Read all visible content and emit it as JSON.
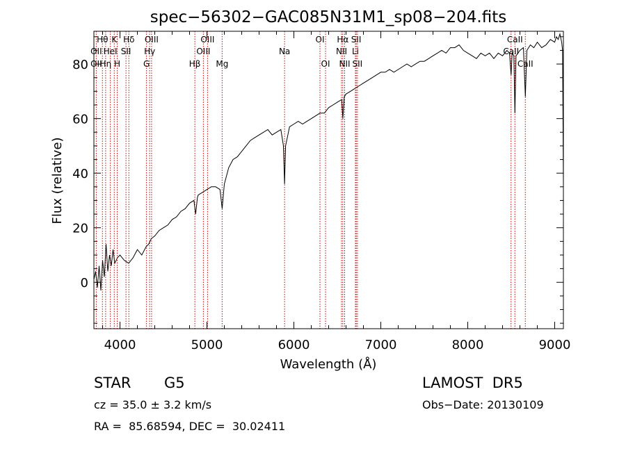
{
  "chart_data": {
    "type": "line",
    "title": "spec−56302−GAC085N31M1_sp08−204.fits",
    "xlabel": "Wavelength (Å)",
    "ylabel": "Flux (relative)",
    "xlim": [
      3700,
      9100
    ],
    "ylim": [
      -17,
      92
    ],
    "xticks": [
      4000,
      5000,
      6000,
      7000,
      8000,
      9000
    ],
    "yticks": [
      0,
      20,
      40,
      60,
      80
    ],
    "grid": false,
    "series": [
      {
        "points": [
          [
            3700,
            1
          ],
          [
            3720,
            4
          ],
          [
            3740,
            -2
          ],
          [
            3760,
            6
          ],
          [
            3780,
            -3
          ],
          [
            3800,
            8
          ],
          [
            3820,
            2
          ],
          [
            3840,
            14
          ],
          [
            3860,
            4
          ],
          [
            3880,
            10
          ],
          [
            3900,
            6
          ],
          [
            3920,
            12
          ],
          [
            3940,
            7
          ],
          [
            3970,
            9
          ],
          [
            4000,
            10
          ],
          [
            4050,
            8
          ],
          [
            4100,
            7
          ],
          [
            4150,
            9
          ],
          [
            4200,
            12
          ],
          [
            4250,
            10
          ],
          [
            4300,
            13
          ],
          [
            4330,
            14
          ],
          [
            4360,
            16
          ],
          [
            4400,
            17
          ],
          [
            4450,
            19
          ],
          [
            4500,
            20
          ],
          [
            4550,
            21
          ],
          [
            4600,
            23
          ],
          [
            4650,
            24
          ],
          [
            4700,
            26
          ],
          [
            4750,
            27
          ],
          [
            4800,
            29
          ],
          [
            4850,
            30
          ],
          [
            4870,
            25
          ],
          [
            4890,
            31
          ],
          [
            4900,
            32
          ],
          [
            4950,
            33
          ],
          [
            5000,
            34
          ],
          [
            5050,
            35
          ],
          [
            5100,
            35
          ],
          [
            5150,
            34
          ],
          [
            5175,
            27
          ],
          [
            5200,
            36
          ],
          [
            5250,
            42
          ],
          [
            5300,
            45
          ],
          [
            5350,
            46
          ],
          [
            5400,
            48
          ],
          [
            5450,
            50
          ],
          [
            5500,
            52
          ],
          [
            5550,
            53
          ],
          [
            5600,
            54
          ],
          [
            5650,
            55
          ],
          [
            5700,
            56
          ],
          [
            5750,
            54
          ],
          [
            5800,
            55
          ],
          [
            5850,
            56
          ],
          [
            5880,
            50
          ],
          [
            5893,
            36
          ],
          [
            5905,
            50
          ],
          [
            5950,
            57
          ],
          [
            6000,
            58
          ],
          [
            6050,
            59
          ],
          [
            6100,
            58
          ],
          [
            6150,
            59
          ],
          [
            6200,
            60
          ],
          [
            6250,
            61
          ],
          [
            6300,
            62
          ],
          [
            6350,
            62
          ],
          [
            6400,
            64
          ],
          [
            6450,
            65
          ],
          [
            6500,
            66
          ],
          [
            6550,
            67
          ],
          [
            6563,
            60
          ],
          [
            6580,
            68
          ],
          [
            6600,
            69
          ],
          [
            6650,
            70
          ],
          [
            6700,
            71
          ],
          [
            6750,
            72
          ],
          [
            6800,
            73
          ],
          [
            6850,
            74
          ],
          [
            6900,
            75
          ],
          [
            6950,
            76
          ],
          [
            7000,
            77
          ],
          [
            7050,
            77
          ],
          [
            7100,
            78
          ],
          [
            7150,
            77
          ],
          [
            7200,
            78
          ],
          [
            7250,
            79
          ],
          [
            7300,
            80
          ],
          [
            7350,
            79
          ],
          [
            7400,
            80
          ],
          [
            7450,
            81
          ],
          [
            7500,
            81
          ],
          [
            7550,
            82
          ],
          [
            7600,
            83
          ],
          [
            7650,
            84
          ],
          [
            7700,
            85
          ],
          [
            7750,
            84
          ],
          [
            7800,
            86
          ],
          [
            7850,
            86
          ],
          [
            7900,
            87
          ],
          [
            7950,
            85
          ],
          [
            8000,
            84
          ],
          [
            8050,
            83
          ],
          [
            8100,
            82
          ],
          [
            8150,
            84
          ],
          [
            8200,
            83
          ],
          [
            8250,
            84
          ],
          [
            8300,
            82
          ],
          [
            8350,
            84
          ],
          [
            8400,
            83
          ],
          [
            8450,
            85
          ],
          [
            8480,
            84
          ],
          [
            8498,
            76
          ],
          [
            8510,
            84
          ],
          [
            8530,
            83
          ],
          [
            8542,
            62
          ],
          [
            8555,
            83
          ],
          [
            8600,
            85
          ],
          [
            8640,
            86
          ],
          [
            8662,
            68
          ],
          [
            8680,
            85
          ],
          [
            8720,
            87
          ],
          [
            8760,
            86
          ],
          [
            8800,
            88
          ],
          [
            8850,
            86
          ],
          [
            8900,
            87
          ],
          [
            8950,
            89
          ],
          [
            9000,
            88
          ],
          [
            9020,
            90
          ],
          [
            9040,
            89
          ],
          [
            9060,
            91
          ],
          [
            9080,
            88
          ],
          [
            9090,
            85
          ],
          [
            9100,
            36
          ]
        ]
      }
    ],
    "line_labels": [
      {
        "text": "Hθ",
        "x": 3798,
        "row": 0
      },
      {
        "text": "K",
        "x": 3934,
        "row": 0
      },
      {
        "text": "Hδ",
        "x": 4102,
        "row": 0
      },
      {
        "text": "OIII",
        "x": 4363,
        "row": 0
      },
      {
        "text": "OIII",
        "x": 5007,
        "row": 0
      },
      {
        "text": "OI",
        "x": 6300,
        "row": 0
      },
      {
        "text": "Hα",
        "x": 6563,
        "row": 0
      },
      {
        "text": "SII",
        "x": 6717,
        "row": 0
      },
      {
        "text": "CaII",
        "x": 8542,
        "row": 0
      },
      {
        "text": "OII",
        "x": 3727,
        "row": 1
      },
      {
        "text": "HeI",
        "x": 3889,
        "row": 1
      },
      {
        "text": "SII",
        "x": 4069,
        "row": 1
      },
      {
        "text": "Hγ",
        "x": 4341,
        "row": 1
      },
      {
        "text": "OIII",
        "x": 4959,
        "row": 1
      },
      {
        "text": "Na",
        "x": 5893,
        "row": 1
      },
      {
        "text": "NII",
        "x": 6548,
        "row": 1
      },
      {
        "text": "Li",
        "x": 6708,
        "row": 1
      },
      {
        "text": "CaII",
        "x": 8498,
        "row": 1
      },
      {
        "text": "OII",
        "x": 3727,
        "row": 2
      },
      {
        "text": "Hη",
        "x": 3835,
        "row": 2
      },
      {
        "text": "H",
        "x": 3968,
        "row": 2
      },
      {
        "text": "G",
        "x": 4305,
        "row": 2
      },
      {
        "text": "Hβ",
        "x": 4861,
        "row": 2
      },
      {
        "text": "Mg",
        "x": 5175,
        "row": 2
      },
      {
        "text": "OI",
        "x": 6364,
        "row": 2
      },
      {
        "text": "NII",
        "x": 6584,
        "row": 2
      },
      {
        "text": "SII",
        "x": 6731,
        "row": 2
      },
      {
        "text": "CaII",
        "x": 8662,
        "row": 2
      }
    ],
    "marker_lines": [
      3727,
      3798,
      3835,
      3889,
      3934,
      3968,
      4069,
      4102,
      4305,
      4341,
      4363,
      4861,
      4959,
      5007,
      5175,
      5893,
      6300,
      6364,
      6548,
      6563,
      6584,
      6708,
      6717,
      6731,
      8498,
      8542,
      8662
    ],
    "colors": {
      "axes": "#000000",
      "spectrum": "#000000",
      "marker": "#cc0000"
    }
  },
  "info": {
    "class_label": "STAR",
    "subclass": "G5",
    "survey": "LAMOST  DR5",
    "cz": "cz = 35.0 ± 3.2 km/s",
    "obs_date": "Obs−Date: 20130109",
    "coords": "RA =  85.68594, DEC =  30.02411"
  }
}
